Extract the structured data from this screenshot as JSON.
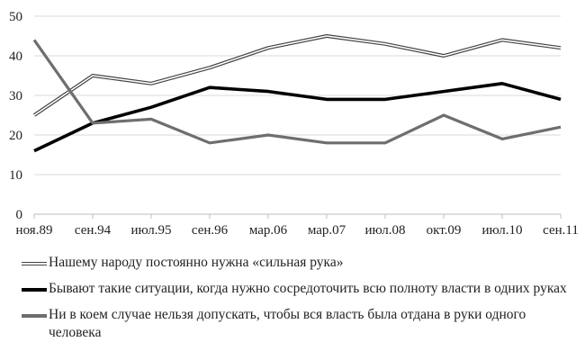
{
  "chart_data": {
    "type": "line",
    "title": "",
    "xlabel": "",
    "ylabel": "",
    "ylim": [
      0,
      50
    ],
    "yticks": [
      0,
      10,
      20,
      30,
      40,
      50
    ],
    "grid": true,
    "legend_position": "bottom",
    "categories": [
      "ноя.89",
      "сен.94",
      "июл.95",
      "сен.96",
      "мар.06",
      "мар.07",
      "июл.08",
      "окт.09",
      "июл.10",
      "сен.11"
    ],
    "series": [
      {
        "name": "Нашему народу постоянно нужна «сильная рука»",
        "style": "double",
        "color": "#444444",
        "values": [
          25,
          35,
          33,
          37,
          42,
          45,
          43,
          40,
          44,
          42
        ]
      },
      {
        "name": "Бывают такие ситуации, когда нужно сосредоточить всю полноту власти в одних руках",
        "style": "solid-thick",
        "color": "#000000",
        "values": [
          16,
          23,
          27,
          32,
          31,
          29,
          29,
          31,
          33,
          29
        ]
      },
      {
        "name": "Ни в коем случае нельзя допускать, чтобы вся власть была отдана в руки одного человека",
        "style": "solid",
        "color": "#6e6e6e",
        "values": [
          44,
          23,
          24,
          18,
          20,
          18,
          18,
          25,
          19,
          22
        ]
      }
    ]
  },
  "legend": {
    "items": [
      {
        "label": "Нашему народу постоянно нужна «сильная рука»"
      },
      {
        "label": "Бывают такие ситуации, когда нужно сосредоточить всю полноту власти в одних руках"
      },
      {
        "label": "Ни в коем случае нельзя допускать, чтобы вся власть была отдана в руки одного человека"
      }
    ]
  }
}
